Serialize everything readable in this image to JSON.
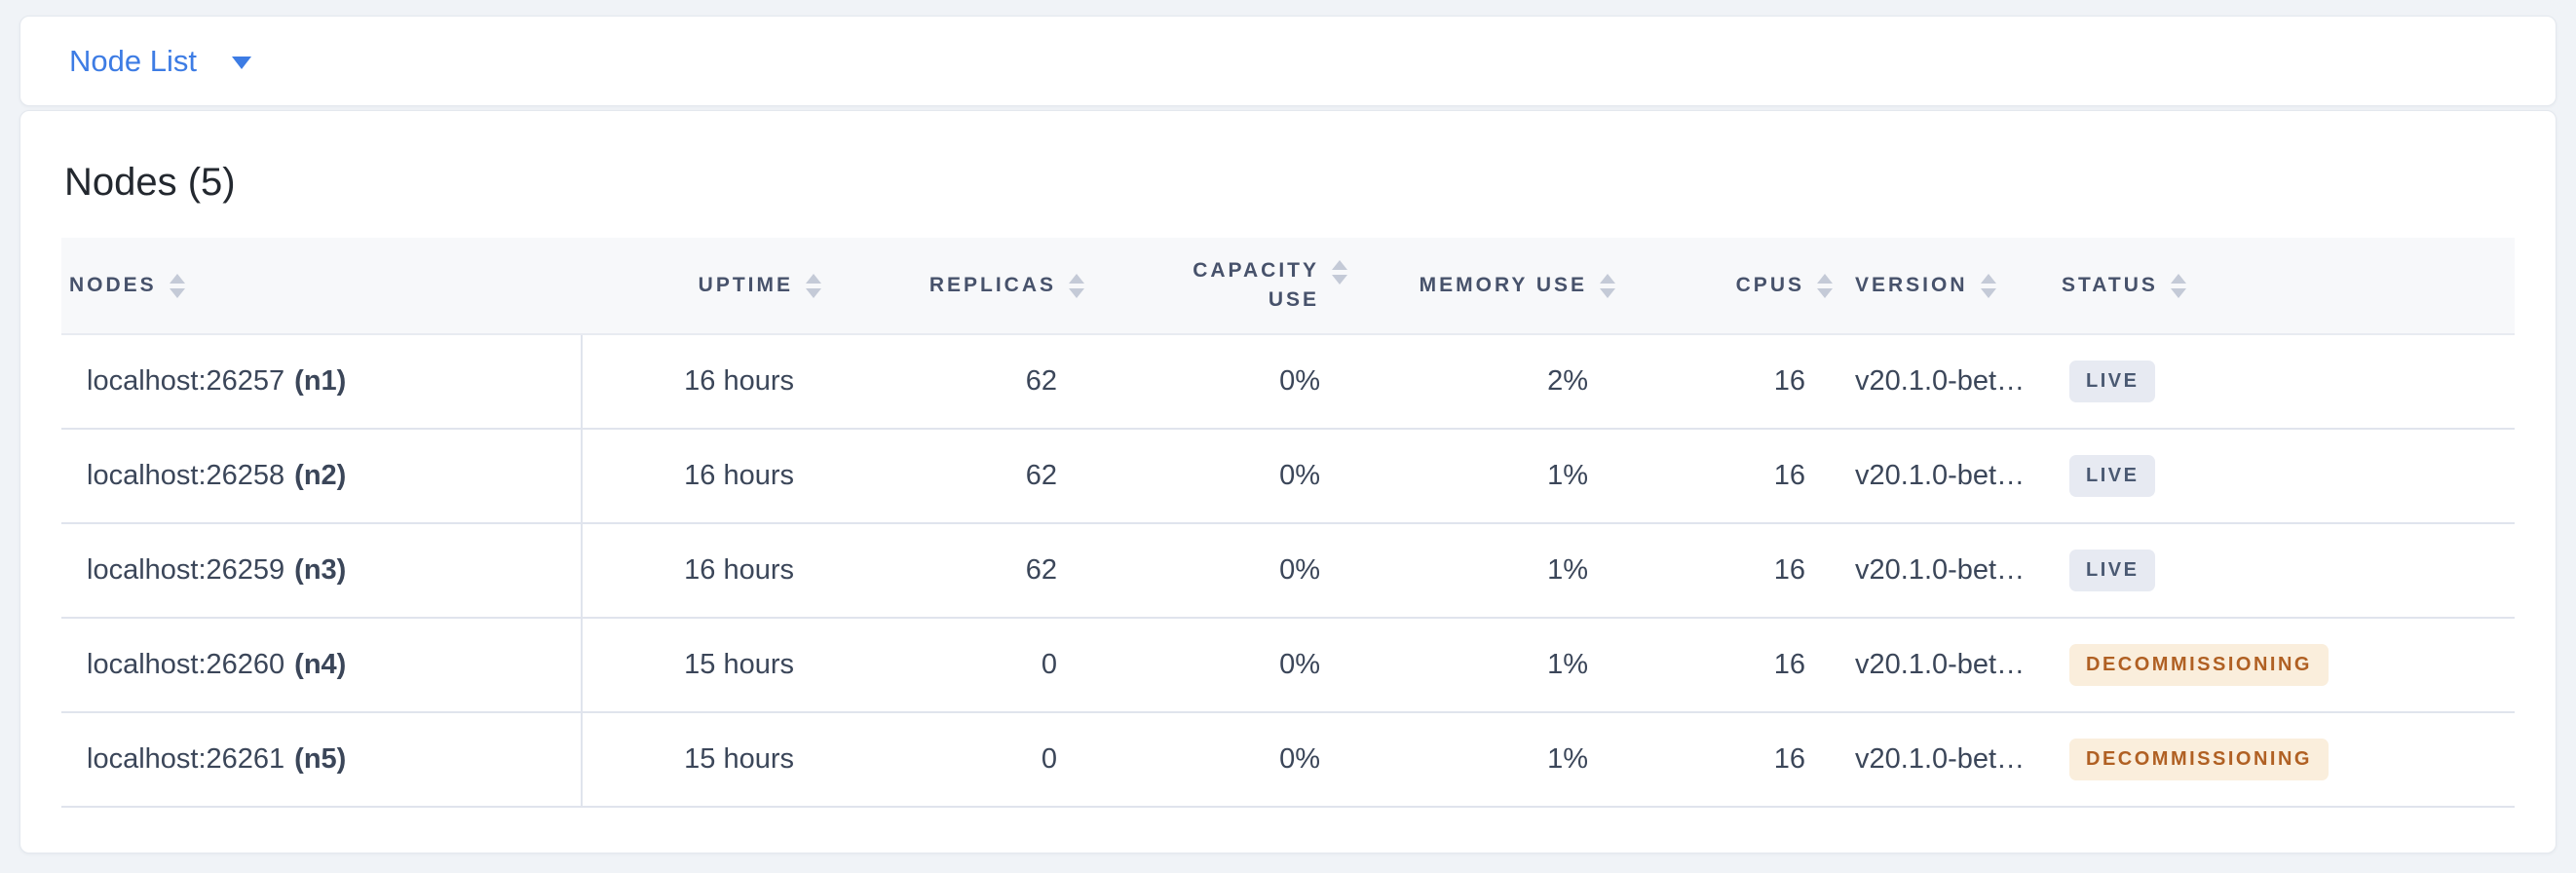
{
  "view_selector": {
    "label": "Node List"
  },
  "page": {
    "title": "Nodes (5)"
  },
  "table": {
    "columns": [
      {
        "label": "NODES",
        "align": "left"
      },
      {
        "label": "UPTIME",
        "align": "right"
      },
      {
        "label": "REPLICAS",
        "align": "right"
      },
      {
        "label": "CAPACITY USE",
        "align": "right"
      },
      {
        "label": "MEMORY USE",
        "align": "right"
      },
      {
        "label": "CPUS",
        "align": "right"
      },
      {
        "label": "VERSION",
        "align": "left"
      },
      {
        "label": "STATUS",
        "align": "left"
      }
    ],
    "rows": [
      {
        "node_address": "localhost:26257",
        "node_id": "(n1)",
        "uptime": "16 hours",
        "replicas": "62",
        "capacity_use": "0%",
        "memory_use": "2%",
        "cpus": "16",
        "version": "v20.1.0-bet…",
        "status": "LIVE",
        "status_type": "live"
      },
      {
        "node_address": "localhost:26258",
        "node_id": "(n2)",
        "uptime": "16 hours",
        "replicas": "62",
        "capacity_use": "0%",
        "memory_use": "1%",
        "cpus": "16",
        "version": "v20.1.0-bet…",
        "status": "LIVE",
        "status_type": "live"
      },
      {
        "node_address": "localhost:26259",
        "node_id": "(n3)",
        "uptime": "16 hours",
        "replicas": "62",
        "capacity_use": "0%",
        "memory_use": "1%",
        "cpus": "16",
        "version": "v20.1.0-bet…",
        "status": "LIVE",
        "status_type": "live"
      },
      {
        "node_address": "localhost:26260",
        "node_id": "(n4)",
        "uptime": "15 hours",
        "replicas": "0",
        "capacity_use": "0%",
        "memory_use": "1%",
        "cpus": "16",
        "version": "v20.1.0-bet…",
        "status": "DECOMMISSIONING",
        "status_type": "decommissioning"
      },
      {
        "node_address": "localhost:26261",
        "node_id": "(n5)",
        "uptime": "15 hours",
        "replicas": "0",
        "capacity_use": "0%",
        "memory_use": "1%",
        "cpus": "16",
        "version": "v20.1.0-bet…",
        "status": "DECOMMISSIONING",
        "status_type": "decommissioning"
      }
    ]
  },
  "colors": {
    "accent_blue": "#3d7ce4",
    "page_bg": "#f0f3f7",
    "header_text": "#47526b",
    "body_text": "#3b4659",
    "status_live_bg": "#e7eaf2",
    "status_live_text": "#4a5972",
    "status_decommissioning_bg": "#faeedc",
    "status_decommissioning_text": "#b06023"
  }
}
